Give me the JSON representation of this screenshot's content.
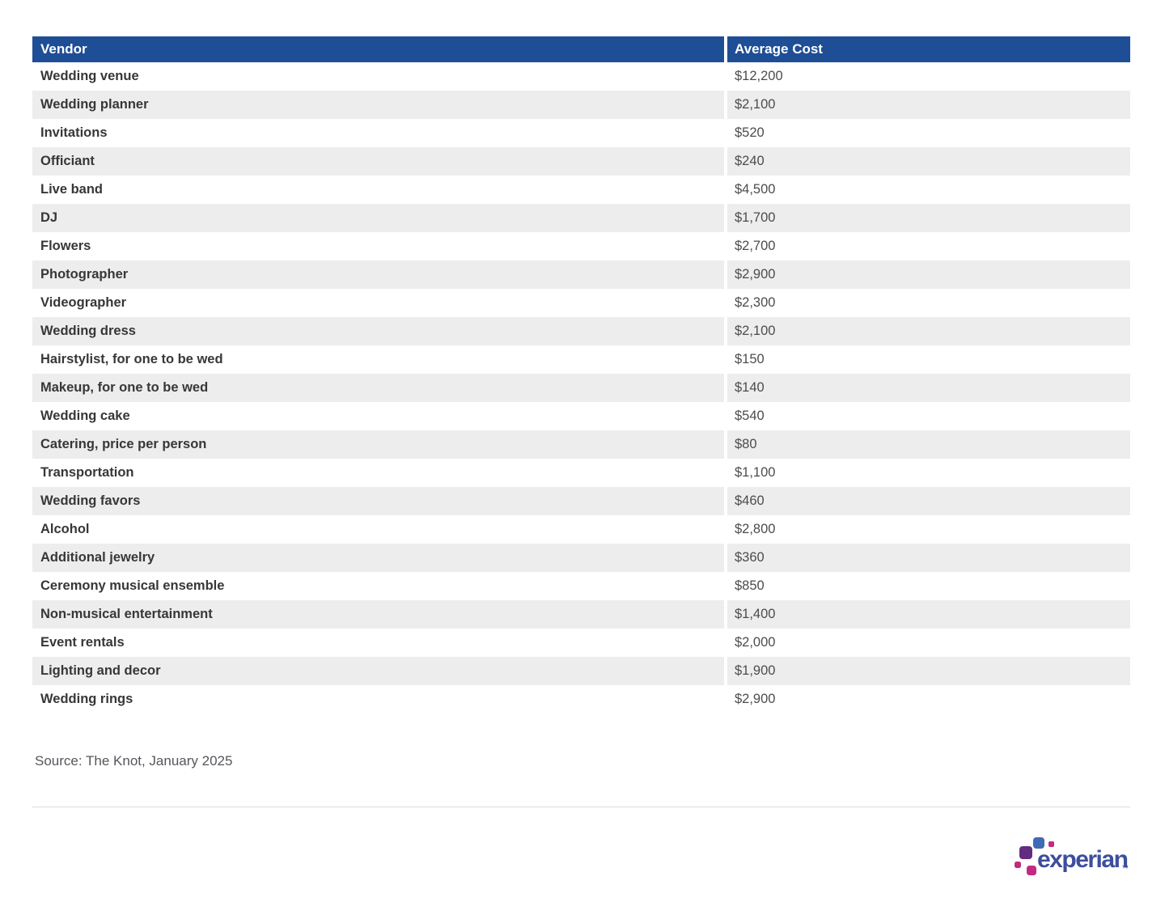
{
  "colors": {
    "header_bg": "#1e4e96",
    "header_text": "#ffffff",
    "stripe": "#ededed",
    "vendor_text": "#373737",
    "cost_text": "#4c4c4c",
    "source_text": "#56575c",
    "divider": "#dcdcdc",
    "logo_text": "#3d4e9d",
    "logo_blue": "#3f6bb4",
    "logo_purple": "#632d7f",
    "logo_magenta": "#c12c80"
  },
  "table": {
    "columns": [
      "Vendor",
      "Average Cost"
    ],
    "rows": [
      {
        "vendor": "Wedding venue",
        "cost": "$12,200"
      },
      {
        "vendor": "Wedding planner",
        "cost": "$2,100"
      },
      {
        "vendor": "Invitations",
        "cost": "$520"
      },
      {
        "vendor": "Officiant",
        "cost": "$240"
      },
      {
        "vendor": "Live band",
        "cost": "$4,500"
      },
      {
        "vendor": "DJ",
        "cost": "$1,700"
      },
      {
        "vendor": "Flowers",
        "cost": "$2,700"
      },
      {
        "vendor": "Photographer",
        "cost": "$2,900"
      },
      {
        "vendor": "Videographer",
        "cost": "$2,300"
      },
      {
        "vendor": "Wedding dress",
        "cost": "$2,100"
      },
      {
        "vendor": "Hairstylist, for one to be wed",
        "cost": "$150"
      },
      {
        "vendor": "Makeup, for one to be wed",
        "cost": "$140"
      },
      {
        "vendor": "Wedding cake",
        "cost": "$540"
      },
      {
        "vendor": "Catering, price per person",
        "cost": "$80"
      },
      {
        "vendor": "Transportation",
        "cost": "$1,100"
      },
      {
        "vendor": "Wedding favors",
        "cost": "$460"
      },
      {
        "vendor": "Alcohol",
        "cost": "$2,800"
      },
      {
        "vendor": "Additional jewelry",
        "cost": "$360"
      },
      {
        "vendor": "Ceremony musical ensemble",
        "cost": "$850"
      },
      {
        "vendor": "Non-musical entertainment",
        "cost": "$1,400"
      },
      {
        "vendor": "Event rentals",
        "cost": "$2,000"
      },
      {
        "vendor": "Lighting and decor",
        "cost": "$1,900"
      },
      {
        "vendor": "Wedding rings",
        "cost": "$2,900"
      }
    ]
  },
  "chart_data": {
    "type": "table",
    "title": "",
    "columns": [
      "Vendor",
      "Average Cost"
    ],
    "rows": [
      [
        "Wedding venue",
        12200
      ],
      [
        "Wedding planner",
        2100
      ],
      [
        "Invitations",
        520
      ],
      [
        "Officiant",
        240
      ],
      [
        "Live band",
        4500
      ],
      [
        "DJ",
        1700
      ],
      [
        "Flowers",
        2700
      ],
      [
        "Photographer",
        2900
      ],
      [
        "Videographer",
        2300
      ],
      [
        "Wedding dress",
        2100
      ],
      [
        "Hairstylist, for one to be wed",
        150
      ],
      [
        "Makeup, for one to be wed",
        140
      ],
      [
        "Wedding cake",
        540
      ],
      [
        "Catering, price per person",
        80
      ],
      [
        "Transportation",
        1100
      ],
      [
        "Wedding favors",
        460
      ],
      [
        "Alcohol",
        2800
      ],
      [
        "Additional jewelry",
        360
      ],
      [
        "Ceremony musical ensemble",
        850
      ],
      [
        "Non-musical entertainment",
        1400
      ],
      [
        "Event rentals",
        2000
      ],
      [
        "Lighting and decor",
        1900
      ],
      [
        "Wedding rings",
        2900
      ]
    ],
    "source": "Source: The Knot, January 2025"
  },
  "source_note": "Source: The Knot, January 2025",
  "logo": {
    "wordmark": "experian",
    "trademark": "™"
  }
}
